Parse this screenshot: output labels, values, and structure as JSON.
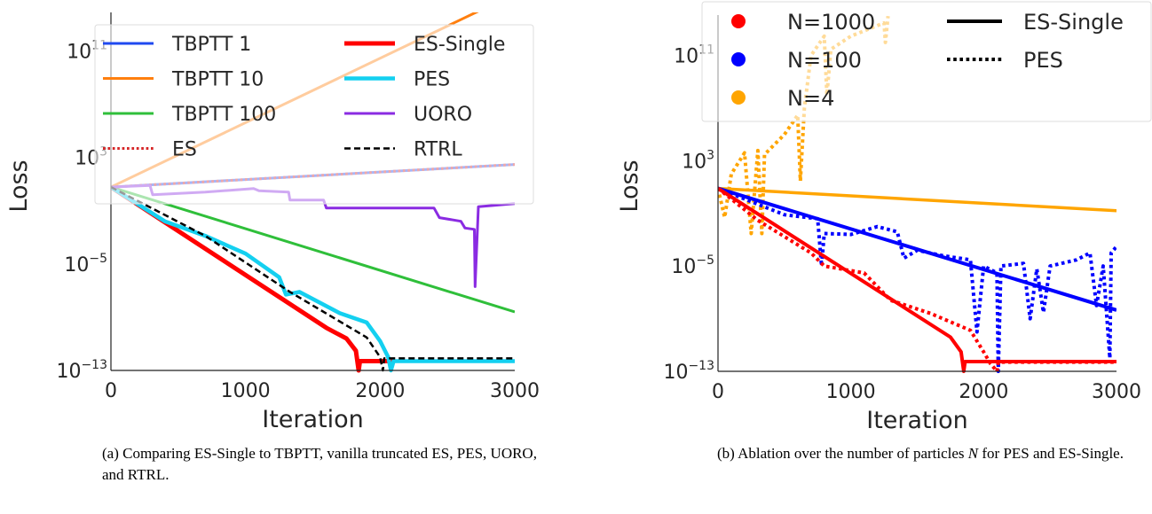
{
  "chart_data": [
    {
      "type": "line",
      "xlabel": "Iteration",
      "ylabel": "Loss",
      "xlim": [
        0,
        3000
      ],
      "ylim": [
        1e-13,
        80000000000000.0
      ],
      "yscale": "log",
      "xticks": [
        "0",
        "1000",
        "2000",
        "3000"
      ],
      "xtick_values": [
        0,
        1000,
        2000,
        3000
      ],
      "yticks": [
        {
          "base": "10",
          "exp": "11",
          "value": 100000000000.0
        },
        {
          "base": "10",
          "exp": "3",
          "value": 1000.0
        },
        {
          "base": "10",
          "exp": "−5",
          "value": 1e-05
        },
        {
          "base": "10",
          "exp": "−13",
          "value": 1e-13
        }
      ],
      "grid": false,
      "legend": "top, 2 columns",
      "series": [
        {
          "name": "TBPTT 1",
          "color": "#1f49f0",
          "style": "solid",
          "width": 3,
          "points": [
            [
              0,
              6
            ],
            [
              3000,
              300
            ]
          ]
        },
        {
          "name": "TBPTT 10",
          "color": "#ff7f0e",
          "style": "solid",
          "width": 3,
          "points": [
            [
              0,
              6
            ],
            [
              3000,
              2000000000000000.0
            ]
          ]
        },
        {
          "name": "TBPTT 100",
          "color": "#2fbf3a",
          "style": "solid",
          "width": 3,
          "points": [
            [
              0,
              6
            ],
            [
              3000,
              2.5e-09
            ]
          ]
        },
        {
          "name": "ES",
          "color": "#d62728",
          "style": "dotted",
          "width": 3,
          "points": [
            [
              0,
              6
            ],
            [
              3000,
              300
            ]
          ]
        },
        {
          "name": "ES-Single",
          "color": "#ff0000",
          "style": "solid",
          "width": 5,
          "points": [
            [
              0,
              6
            ],
            [
              1600,
              1.6e-10
            ],
            [
              1750,
              2.5e-11
            ],
            [
              1820,
              3e-12
            ],
            [
              1840,
              1e-13
            ],
            [
              1850,
              5e-13
            ],
            [
              2100,
              5e-13
            ]
          ]
        },
        {
          "name": "PES",
          "color": "#14d0f0",
          "style": "solid",
          "width": 4.5,
          "points": [
            [
              0,
              6
            ],
            [
              400,
              0.016
            ],
            [
              700,
              0.0013
            ],
            [
              1000,
              6e-05
            ],
            [
              1250,
              1e-06
            ],
            [
              1300,
              5e-08
            ],
            [
              1400,
              8e-08
            ],
            [
              1700,
              2e-09
            ],
            [
              1900,
              4e-10
            ],
            [
              2000,
              1.6e-11
            ],
            [
              2060,
              1e-12
            ],
            [
              2080,
              1e-13
            ],
            [
              2100,
              5e-13
            ],
            [
              3000,
              5e-13
            ]
          ]
        },
        {
          "name": "UORO",
          "color": "#8a2be2",
          "style": "solid",
          "width": 3,
          "points": [
            [
              0,
              6
            ],
            [
              290,
              8
            ],
            [
              310,
              1.6
            ],
            [
              700,
              2.5
            ],
            [
              1060,
              4.7
            ],
            [
              1100,
              3.2
            ],
            [
              1320,
              2.5
            ],
            [
              1330,
              0.63
            ],
            [
              1580,
              0.63
            ],
            [
              1600,
              0.16
            ],
            [
              2400,
              0.16
            ],
            [
              2440,
              0.03
            ],
            [
              2600,
              0.016
            ],
            [
              2630,
              0.005
            ],
            [
              2700,
              0.004
            ],
            [
              2705,
              2e-07
            ],
            [
              2730,
              0.2
            ],
            [
              3000,
              0.34
            ]
          ]
        },
        {
          "name": "RTRL",
          "color": "#000000",
          "style": "dashed",
          "width": 2.5,
          "points": [
            [
              0,
              6
            ],
            [
              700,
              0.0013
            ],
            [
              1330,
              8e-08
            ],
            [
              1900,
              3e-11
            ],
            [
              2000,
              1e-12
            ],
            [
              2020,
              1e-13
            ],
            [
              2030,
              8e-13
            ],
            [
              3000,
              8e-13
            ]
          ]
        }
      ],
      "legend_order": [
        0,
        4,
        1,
        5,
        2,
        6,
        3,
        7
      ]
    },
    {
      "type": "line",
      "xlabel": "Iteration",
      "ylabel": "Loss",
      "xlim": [
        0,
        3000
      ],
      "ylim": [
        1e-13,
        120000000000000.0
      ],
      "yscale": "log",
      "xticks": [
        "0",
        "1000",
        "2000",
        "3000"
      ],
      "xtick_values": [
        0,
        1000,
        2000,
        3000
      ],
      "yticks": [
        {
          "base": "10",
          "exp": "11",
          "value": 100000000000.0
        },
        {
          "base": "10",
          "exp": "3",
          "value": 1000.0
        },
        {
          "base": "10",
          "exp": "−5",
          "value": 1e-05
        },
        {
          "base": "10",
          "exp": "−13",
          "value": 1e-13
        }
      ],
      "grid": false,
      "legend": "top, 2 columns",
      "legend_colors": [
        {
          "name": "N=1000",
          "color": "#ff0000"
        },
        {
          "name": "N=100",
          "color": "#0000ff"
        },
        {
          "name": "N=4",
          "color": "#ffa500"
        }
      ],
      "legend_styles": [
        {
          "name": "ES-Single",
          "style": "solid"
        },
        {
          "name": "PES",
          "style": "dotted"
        }
      ],
      "series": [
        {
          "N": "N=4",
          "method": "PES",
          "color": "#ffa500",
          "style": "dotted",
          "width": 4,
          "points": [
            [
              0,
              8
            ],
            [
              50,
              0.05
            ],
            [
              100,
              100
            ],
            [
              200,
              4000
            ],
            [
              250,
              0.003
            ],
            [
              300,
              6000
            ],
            [
              330,
              0.003
            ],
            [
              350,
              3000
            ],
            [
              500,
              100000.0
            ],
            [
              600,
              3000000.0
            ],
            [
              620,
              30
            ],
            [
              650,
              10000000.0
            ],
            [
              700,
              100000000000.0
            ],
            [
              800,
              3000000000000.0
            ],
            [
              820,
              100000000.0
            ],
            [
              850,
              300000000000.0
            ],
            [
              1000,
              3000000000000.0
            ],
            [
              1250,
              30000000000000.0
            ],
            [
              1260,
              1000000000000.0
            ],
            [
              1280,
              100000000000000.0
            ]
          ]
        },
        {
          "N": "N=4",
          "method": "ES-Single",
          "color": "#ffa500",
          "style": "solid",
          "width": 3.5,
          "points": [
            [
              0,
              8
            ],
            [
              3000,
              0.16
            ]
          ]
        },
        {
          "N": "N=100",
          "method": "PES",
          "color": "#0000ff",
          "style": "dotted",
          "width": 4,
          "points": [
            [
              0,
              8
            ],
            [
              500,
              0.08
            ],
            [
              750,
              0.04
            ],
            [
              780,
              1e-05
            ],
            [
              800,
              0.003
            ],
            [
              1000,
              0.0025
            ],
            [
              1200,
              0.01
            ],
            [
              1350,
              0.004
            ],
            [
              1400,
              4e-05
            ],
            [
              1500,
              0.00016
            ],
            [
              1700,
              6e-05
            ],
            [
              1900,
              3e-05
            ],
            [
              1950,
              1e-10
            ],
            [
              2000,
              1e-05
            ],
            [
              2100,
              3e-06
            ],
            [
              2110,
              1e-13
            ],
            [
              2130,
              1e-05
            ],
            [
              2300,
              1.6e-05
            ],
            [
              2350,
              1e-09
            ],
            [
              2400,
              6e-06
            ],
            [
              2450,
              3e-09
            ],
            [
              2500,
              1e-05
            ],
            [
              2700,
              3e-05
            ],
            [
              2800,
              0.0001
            ],
            [
              2850,
              1e-08
            ],
            [
              2900,
              1e-05
            ],
            [
              2950,
              1e-12
            ],
            [
              2960,
              0.0001
            ],
            [
              3000,
              0.0003
            ]
          ]
        },
        {
          "N": "N=100",
          "method": "ES-Single",
          "color": "#0000ff",
          "style": "solid",
          "width": 4,
          "points": [
            [
              0,
              8
            ],
            [
              3000,
              4.5e-09
            ]
          ]
        },
        {
          "N": "N=1000",
          "method": "PES",
          "color": "#ff0000",
          "style": "dotted",
          "width": 4,
          "points": [
            [
              0,
              8
            ],
            [
              300,
              0.03
            ],
            [
              700,
              0.0001
            ],
            [
              800,
              1e-05
            ],
            [
              1100,
              3e-06
            ],
            [
              1300,
              2.5e-08
            ],
            [
              1600,
              2.5e-09
            ],
            [
              1900,
              1.3e-10
            ],
            [
              2000,
              3e-12
            ],
            [
              2050,
              4e-13
            ],
            [
              2100,
              1e-13
            ],
            [
              2110,
              5e-13
            ],
            [
              3000,
              5e-13
            ]
          ]
        },
        {
          "N": "N=1000",
          "method": "ES-Single",
          "color": "#ff0000",
          "style": "solid",
          "width": 4,
          "points": [
            [
              0,
              8
            ],
            [
              1750,
              4e-11
            ],
            [
              1830,
              3e-12
            ],
            [
              1850,
              1e-13
            ],
            [
              1860,
              5.5e-13
            ],
            [
              3000,
              5.5e-13
            ]
          ]
        }
      ]
    }
  ],
  "captions": {
    "a": "(a) Comparing ES-Single to TBPTT, vanilla truncated ES, PES, UORO, and RTRL.",
    "b_pre": "(b) Ablation over the number of particles ",
    "b_var": "N",
    "b_post": " for PES and ES-Single."
  }
}
